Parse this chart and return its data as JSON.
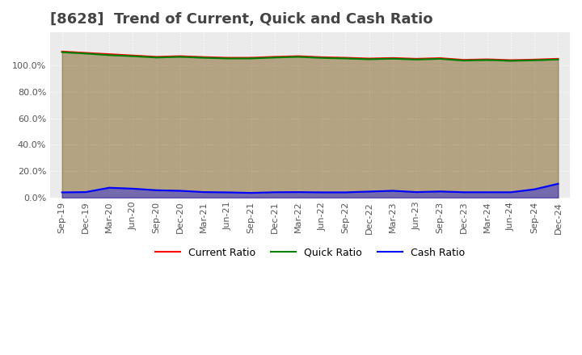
{
  "title": "[8628]  Trend of Current, Quick and Cash Ratio",
  "xlabel": "",
  "ylabel": "",
  "ylim": [
    0,
    1.25
  ],
  "yticks": [
    0.0,
    0.2,
    0.4,
    0.6,
    0.8,
    1.0
  ],
  "yticklabels": [
    "0.0%",
    "20.0%",
    "40.0%",
    "60.0%",
    "80.0%",
    "100.0%"
  ],
  "x_labels": [
    "Sep-19",
    "Dec-19",
    "Mar-20",
    "Jun-20",
    "Sep-20",
    "Dec-20",
    "Mar-21",
    "Jun-21",
    "Sep-21",
    "Dec-21",
    "Mar-22",
    "Jun-22",
    "Sep-22",
    "Dec-22",
    "Mar-23",
    "Jun-23",
    "Sep-23",
    "Dec-23",
    "Mar-24",
    "Jun-24",
    "Sep-24",
    "Dec-24"
  ],
  "current_ratio": [
    1.105,
    1.095,
    1.085,
    1.075,
    1.065,
    1.07,
    1.063,
    1.058,
    1.058,
    1.065,
    1.07,
    1.062,
    1.058,
    1.052,
    1.056,
    1.05,
    1.055,
    1.042,
    1.046,
    1.04,
    1.044,
    1.05
  ],
  "quick_ratio": [
    1.1,
    1.09,
    1.078,
    1.07,
    1.06,
    1.065,
    1.058,
    1.053,
    1.053,
    1.06,
    1.065,
    1.057,
    1.053,
    1.047,
    1.051,
    1.045,
    1.05,
    1.037,
    1.041,
    1.035,
    1.039,
    1.045
  ],
  "cash_ratio": [
    0.04,
    0.042,
    0.075,
    0.068,
    0.056,
    0.052,
    0.042,
    0.04,
    0.036,
    0.041,
    0.042,
    0.04,
    0.04,
    0.046,
    0.052,
    0.042,
    0.047,
    0.041,
    0.041,
    0.041,
    0.063,
    0.105
  ],
  "current_color": "#FF0000",
  "quick_color": "#008000",
  "cash_color": "#0000FF",
  "bg_color": "#FFFFFF",
  "plot_bg_color": "#EBEBEB",
  "grid_color": "#FFFFFF",
  "legend_labels": [
    "Current Ratio",
    "Quick Ratio",
    "Cash Ratio"
  ],
  "title_fontsize": 13,
  "tick_fontsize": 8,
  "legend_fontsize": 9,
  "line_width": 1.5
}
